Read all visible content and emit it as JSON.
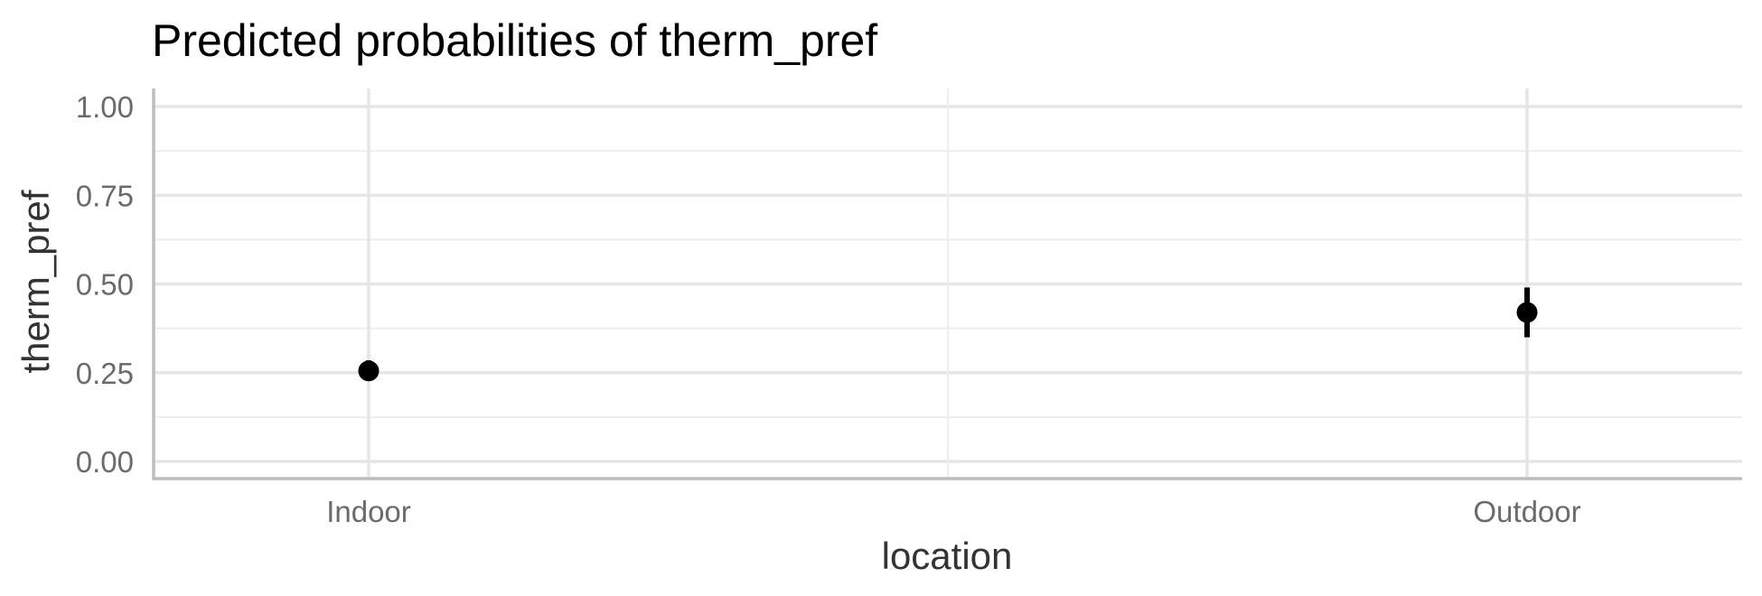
{
  "chart_data": {
    "type": "scatter",
    "title": "Predicted probabilities of therm_pref",
    "xlabel": "location",
    "ylabel": "therm_pref",
    "categories": [
      "Indoor",
      "Outdoor"
    ],
    "series": [
      {
        "values": [
          0.255,
          0.42
        ],
        "lower": [
          0.23,
          0.35
        ],
        "upper": [
          0.285,
          0.49
        ]
      }
    ],
    "ylim": [
      0,
      1
    ],
    "yticks": [
      0,
      0.25,
      0.5,
      0.75,
      1
    ],
    "ytick_labels": [
      "0.00",
      "0.25",
      "0.50",
      "0.75",
      "1.00"
    ],
    "grid": true,
    "legend": "none",
    "colors": {
      "point": "#000000",
      "grid": "#e6e6e6",
      "axis": "#bdbdbd"
    }
  }
}
